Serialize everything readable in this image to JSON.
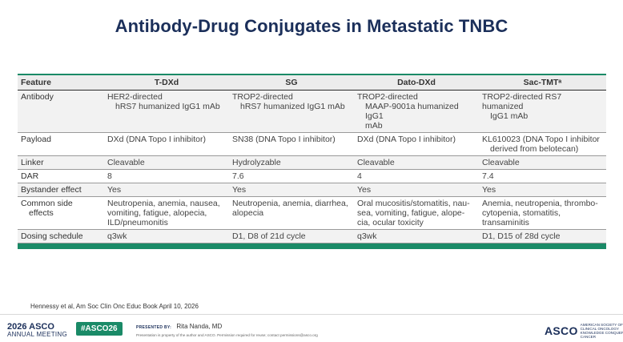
{
  "title": "Antibody-Drug Conjugates in Metastatic TNBC",
  "table": {
    "headers": [
      "Feature",
      "T-DXd",
      "SG",
      "Dato-DXd",
      "Sac-TMTᵃ"
    ],
    "rows": [
      {
        "feature": [
          "Antibody"
        ],
        "cells": [
          [
            "HER2-directed",
            "hRS7 humanized IgG1 mAb"
          ],
          [
            "TROP2-directed",
            "hRS7 humanized IgG1 mAb"
          ],
          [
            "TROP2-directed",
            "MAAP-9001a humanized IgG1",
            "mAb"
          ],
          [
            "TROP2-directed RS7 humanized",
            "IgG1 mAb"
          ]
        ]
      },
      {
        "feature": [
          "Payload"
        ],
        "cells": [
          [
            "DXd (DNA Topo I inhibitor)"
          ],
          [
            "SN38 (DNA Topo I inhibitor)"
          ],
          [
            "DXd (DNA Topo I inhibitor)"
          ],
          [
            "KL610023 (DNA Topo I inhibitor",
            "derived from belotecan)"
          ]
        ]
      },
      {
        "feature": [
          "Linker"
        ],
        "cells": [
          [
            "Cleavable"
          ],
          [
            "Hydrolyzable"
          ],
          [
            "Cleavable"
          ],
          [
            "Cleavable"
          ]
        ]
      },
      {
        "feature": [
          "DAR"
        ],
        "cells": [
          [
            "8"
          ],
          [
            "7.6"
          ],
          [
            "4"
          ],
          [
            "7.4"
          ]
        ]
      },
      {
        "feature": [
          "Bystander effect"
        ],
        "cells": [
          [
            "Yes"
          ],
          [
            "Yes"
          ],
          [
            "Yes"
          ],
          [
            "Yes"
          ]
        ]
      },
      {
        "feature": [
          "Common side",
          "effects"
        ],
        "cells": [
          [
            "Neutropenia, anemia, nausea,",
            "vomiting, fatigue, alopecia,",
            "ILD/pneumonitis"
          ],
          [
            "Neutropenia, anemia, diarrhea,",
            "alopecia"
          ],
          [
            "Oral mucositis/stomatitis, nau-",
            "sea, vomiting, fatigue, alope-",
            "cia, ocular toxicity"
          ],
          [
            "Anemia, neutropenia, thrombo-",
            "cytopenia, stomatitis,",
            "transaminitis"
          ]
        ]
      },
      {
        "feature": [
          "Dosing schedule"
        ],
        "cells": [
          [
            "q3wk"
          ],
          [
            "D1, D8 of 21d cycle"
          ],
          [
            "q3wk"
          ],
          [
            "D1, D15 of 28d cycle"
          ]
        ]
      }
    ]
  },
  "citation": "Hennessy et al, Am Soc Clin Onc Educ Book April 10, 2026",
  "footer": {
    "meeting_year": "2026 ASCO",
    "meeting_name": "ANNUAL MEETING",
    "hashtag": "#ASCO26",
    "presented_by_label": "PRESENTED BY:",
    "presenter": "Rita Nanda, MD",
    "notice": "Presentation is property of the author and ASCO. Permission required for reuse; contact permissions@asco.org",
    "logo_word": "ASCO",
    "logo_tagline": "AMERICAN SOCIETY OF CLINICAL ONCOLOGY",
    "logo_tagline2": "KNOWLEDGE CONQUERS CANCER"
  },
  "colors": {
    "accent": "#1a8a67",
    "title": "#1b2f5a"
  }
}
